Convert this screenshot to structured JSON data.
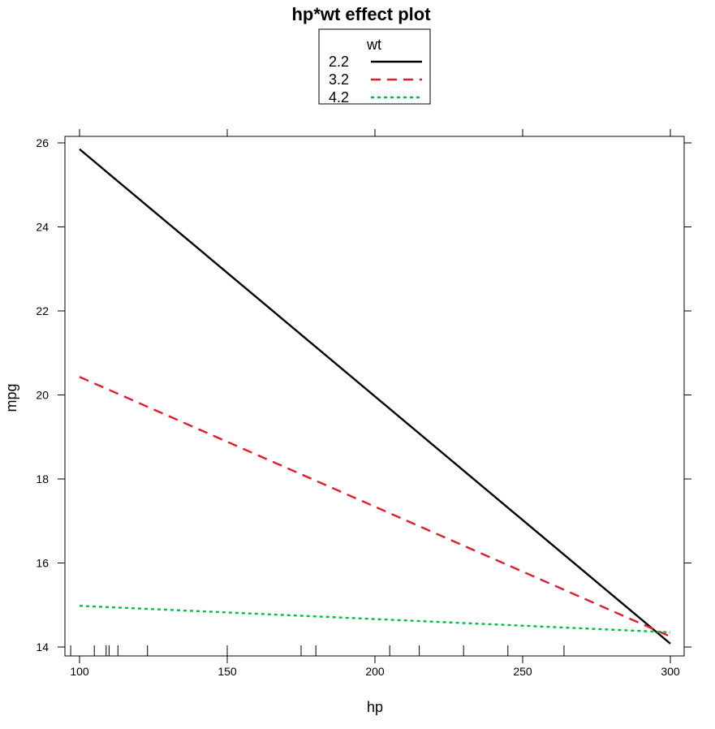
{
  "chart_data": {
    "type": "line",
    "title": "hp*wt effect plot",
    "xlabel": "hp",
    "ylabel": "mpg",
    "xlim": [
      100,
      300
    ],
    "ylim": [
      14,
      26
    ],
    "x_ticks": [
      100,
      150,
      200,
      250,
      300
    ],
    "y_ticks": [
      14,
      16,
      18,
      20,
      22,
      24,
      26
    ],
    "x_tick_labels": [
      "100",
      "150",
      "200",
      "250",
      "300"
    ],
    "y_tick_labels": [
      "14",
      "16",
      "18",
      "20",
      "22",
      "24",
      "26"
    ],
    "legend": {
      "title": "wt",
      "placement": "top-center"
    },
    "series": [
      {
        "name": "2.2",
        "color": "#000000",
        "dash": "solid",
        "x": [
          100,
          300
        ],
        "y": [
          25.85,
          14.08
        ]
      },
      {
        "name": "3.2",
        "color": "#e8192c",
        "dash": "dashed",
        "x": [
          100,
          300
        ],
        "y": [
          20.43,
          14.25
        ]
      },
      {
        "name": "4.2",
        "color": "#00c040",
        "dash": "dotted",
        "x": [
          100,
          300
        ],
        "y": [
          14.98,
          14.35
        ]
      }
    ],
    "rug_x": [
      97,
      105,
      109,
      110,
      113,
      123,
      150,
      175,
      180,
      205,
      215,
      230,
      245,
      264
    ]
  }
}
